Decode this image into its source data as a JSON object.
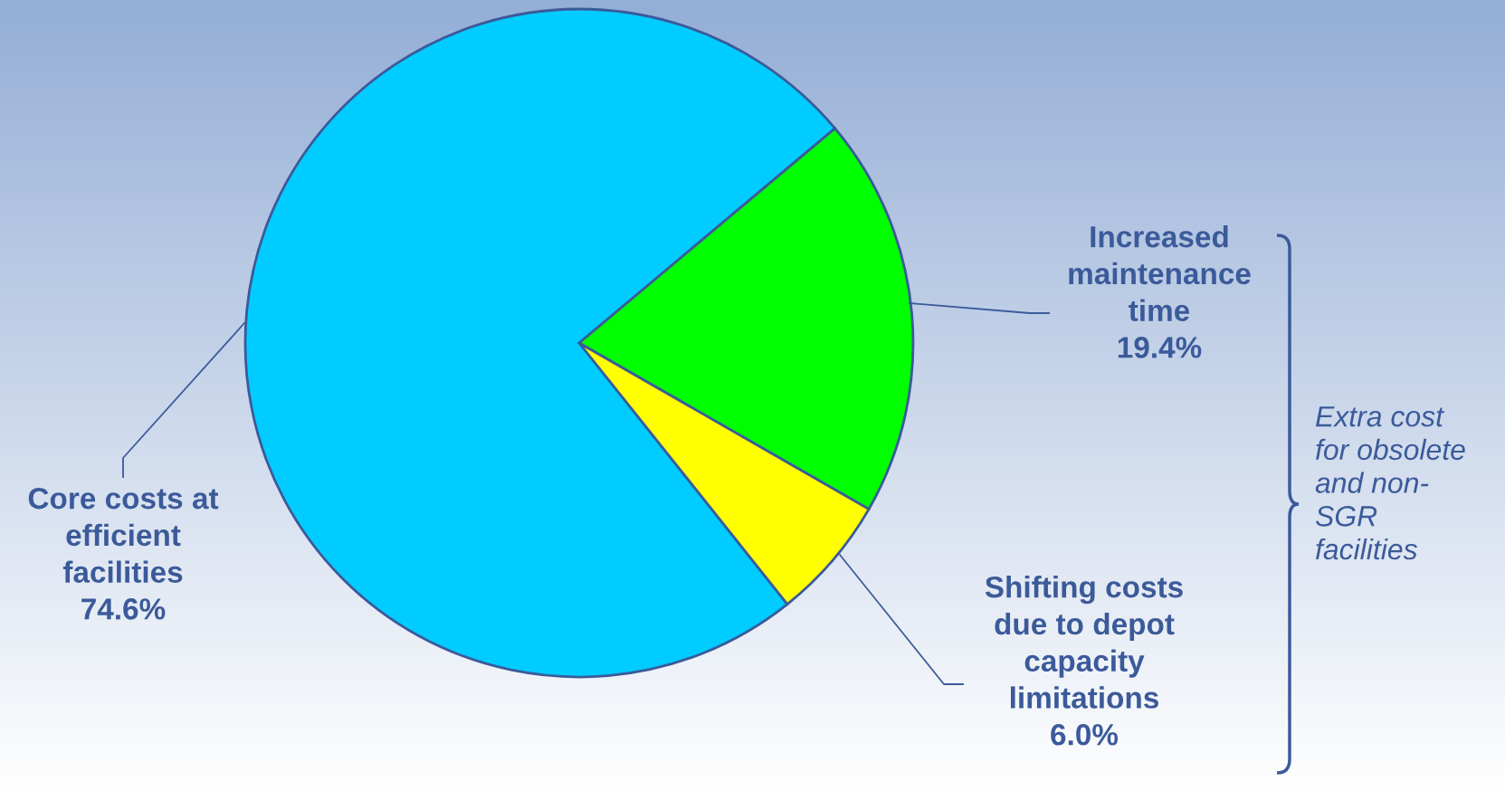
{
  "chart_data": {
    "type": "pie",
    "categories": [
      "Core costs at\nefficient\nfacilities",
      "Increased\nmaintenance\ntime",
      "Shifting costs\ndue to depot\ncapacity\nlimitations"
    ],
    "values": [
      74.6,
      19.4,
      6.0
    ],
    "value_labels": [
      "74.6%",
      "19.4%",
      "6.0%"
    ],
    "colors": [
      "#00ccff",
      "#00ff00",
      "#ffff00"
    ],
    "annotations": [
      "Extra cost\nfor obsolete\nand non-\nSGR\nfacilities"
    ],
    "legend": false
  }
}
